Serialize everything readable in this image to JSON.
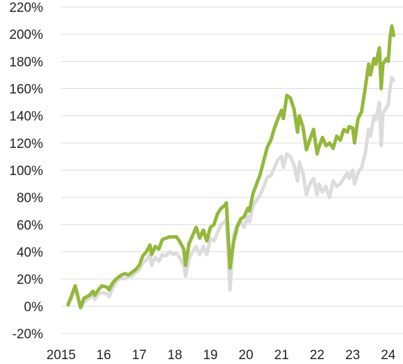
{
  "chart_data": {
    "type": "line",
    "title": "",
    "xlabel": "",
    "ylabel": "",
    "x_unit": "year",
    "xlim": [
      2014.6,
      2024.25
    ],
    "ylim": [
      -20,
      220
    ],
    "grid": "horizontal",
    "legend": "none",
    "y_ticks": [
      -20,
      0,
      20,
      40,
      60,
      80,
      100,
      120,
      140,
      160,
      180,
      200,
      220
    ],
    "y_tick_labels": [
      "-20%",
      "0%",
      "20%",
      "40%",
      "60%",
      "80%",
      "100%",
      "120%",
      "140%",
      "160%",
      "180%",
      "200%",
      "220%"
    ],
    "x_ticks": [
      2015,
      2016,
      2017,
      2018,
      2019,
      2020,
      2021,
      2022,
      2023,
      2024
    ],
    "x_tick_labels": [
      "2015",
      "16",
      "17",
      "18",
      "19",
      "20",
      "21",
      "22",
      "23",
      "24"
    ],
    "series": [
      {
        "color": "#dcdcdc",
        "points": [
          [
            2015.0,
            2
          ],
          [
            2015.1,
            6
          ],
          [
            2015.2,
            13
          ],
          [
            2015.25,
            9
          ],
          [
            2015.35,
            -1
          ],
          [
            2015.45,
            3
          ],
          [
            2015.6,
            6
          ],
          [
            2015.7,
            8
          ],
          [
            2015.75,
            5
          ],
          [
            2015.85,
            9
          ],
          [
            2015.95,
            10
          ],
          [
            2016.1,
            9
          ],
          [
            2016.15,
            7
          ],
          [
            2016.25,
            13
          ],
          [
            2016.35,
            18
          ],
          [
            2016.5,
            21
          ],
          [
            2016.6,
            20
          ],
          [
            2016.7,
            22
          ],
          [
            2016.8,
            22
          ],
          [
            2016.9,
            25
          ],
          [
            2017.0,
            27
          ],
          [
            2017.1,
            32
          ],
          [
            2017.2,
            34
          ],
          [
            2017.3,
            38
          ],
          [
            2017.35,
            30
          ],
          [
            2017.45,
            36
          ],
          [
            2017.55,
            33
          ],
          [
            2017.65,
            38
          ],
          [
            2017.75,
            37
          ],
          [
            2017.85,
            40
          ],
          [
            2017.95,
            38
          ],
          [
            2018.05,
            39
          ],
          [
            2018.15,
            35
          ],
          [
            2018.25,
            30
          ],
          [
            2018.3,
            22
          ],
          [
            2018.4,
            35
          ],
          [
            2018.5,
            40
          ],
          [
            2018.6,
            44
          ],
          [
            2018.7,
            38
          ],
          [
            2018.8,
            44
          ],
          [
            2018.9,
            38
          ],
          [
            2019.0,
            50
          ],
          [
            2019.1,
            48
          ],
          [
            2019.2,
            54
          ],
          [
            2019.3,
            60
          ],
          [
            2019.4,
            62
          ],
          [
            2019.45,
            64
          ],
          [
            2019.55,
            12
          ],
          [
            2019.65,
            52
          ],
          [
            2019.75,
            60
          ],
          [
            2019.85,
            62
          ],
          [
            2019.95,
            58
          ],
          [
            2020.05,
            66
          ],
          [
            2020.1,
            62
          ],
          [
            2020.2,
            74
          ],
          [
            2020.3,
            78
          ],
          [
            2020.4,
            82
          ],
          [
            2020.5,
            88
          ],
          [
            2020.6,
            95
          ],
          [
            2020.7,
            96
          ],
          [
            2020.8,
            102
          ],
          [
            2020.9,
            108
          ],
          [
            2021.0,
            110
          ],
          [
            2021.05,
            102
          ],
          [
            2021.15,
            112
          ],
          [
            2021.25,
            110
          ],
          [
            2021.35,
            104
          ],
          [
            2021.45,
            92
          ],
          [
            2021.5,
            106
          ],
          [
            2021.6,
            98
          ],
          [
            2021.7,
            82
          ],
          [
            2021.8,
            90
          ],
          [
            2021.9,
            94
          ],
          [
            2022.0,
            82
          ],
          [
            2022.05,
            90
          ],
          [
            2022.15,
            84
          ],
          [
            2022.25,
            88
          ],
          [
            2022.35,
            80
          ],
          [
            2022.45,
            92
          ],
          [
            2022.55,
            88
          ],
          [
            2022.65,
            90
          ],
          [
            2022.75,
            94
          ],
          [
            2022.85,
            98
          ],
          [
            2022.9,
            94
          ],
          [
            2023.0,
            100
          ],
          [
            2023.05,
            90
          ],
          [
            2023.15,
            98
          ],
          [
            2023.25,
            102
          ],
          [
            2023.35,
            112
          ],
          [
            2023.45,
            130
          ],
          [
            2023.5,
            125
          ],
          [
            2023.6,
            140
          ],
          [
            2023.65,
            137
          ],
          [
            2023.75,
            150
          ],
          [
            2023.8,
            118
          ],
          [
            2023.85,
            142
          ],
          [
            2023.95,
            146
          ],
          [
            2024.0,
            148
          ],
          [
            2024.05,
            160
          ],
          [
            2024.1,
            168
          ],
          [
            2024.15,
            166
          ]
        ]
      },
      {
        "color": "#94b83a",
        "points": [
          [
            2015.0,
            1
          ],
          [
            2015.1,
            8
          ],
          [
            2015.2,
            15
          ],
          [
            2015.25,
            10
          ],
          [
            2015.35,
            -1
          ],
          [
            2015.45,
            6
          ],
          [
            2015.6,
            8
          ],
          [
            2015.7,
            11
          ],
          [
            2015.75,
            8
          ],
          [
            2015.85,
            12
          ],
          [
            2015.95,
            15
          ],
          [
            2016.1,
            14
          ],
          [
            2016.15,
            12
          ],
          [
            2016.25,
            17
          ],
          [
            2016.35,
            20
          ],
          [
            2016.5,
            23
          ],
          [
            2016.6,
            24
          ],
          [
            2016.7,
            23
          ],
          [
            2016.8,
            25
          ],
          [
            2016.9,
            27
          ],
          [
            2017.0,
            30
          ],
          [
            2017.1,
            37
          ],
          [
            2017.2,
            40
          ],
          [
            2017.3,
            45
          ],
          [
            2017.35,
            38
          ],
          [
            2017.45,
            44
          ],
          [
            2017.55,
            42
          ],
          [
            2017.65,
            49
          ],
          [
            2017.75,
            50
          ],
          [
            2017.85,
            51
          ],
          [
            2017.95,
            51
          ],
          [
            2018.05,
            51
          ],
          [
            2018.15,
            47
          ],
          [
            2018.25,
            42
          ],
          [
            2018.3,
            30
          ],
          [
            2018.4,
            46
          ],
          [
            2018.5,
            52
          ],
          [
            2018.6,
            58
          ],
          [
            2018.7,
            50
          ],
          [
            2018.8,
            56
          ],
          [
            2018.9,
            48
          ],
          [
            2019.0,
            58
          ],
          [
            2019.1,
            60
          ],
          [
            2019.2,
            68
          ],
          [
            2019.3,
            72
          ],
          [
            2019.4,
            74
          ],
          [
            2019.45,
            76
          ],
          [
            2019.55,
            28
          ],
          [
            2019.65,
            47
          ],
          [
            2019.75,
            58
          ],
          [
            2019.85,
            64
          ],
          [
            2019.95,
            66
          ],
          [
            2020.05,
            72
          ],
          [
            2020.1,
            70
          ],
          [
            2020.2,
            83
          ],
          [
            2020.3,
            90
          ],
          [
            2020.4,
            97
          ],
          [
            2020.5,
            107
          ],
          [
            2020.6,
            117
          ],
          [
            2020.7,
            122
          ],
          [
            2020.8,
            131
          ],
          [
            2020.9,
            138
          ],
          [
            2021.0,
            144
          ],
          [
            2021.05,
            138
          ],
          [
            2021.15,
            155
          ],
          [
            2021.25,
            153
          ],
          [
            2021.35,
            145
          ],
          [
            2021.45,
            128
          ],
          [
            2021.5,
            140
          ],
          [
            2021.6,
            132
          ],
          [
            2021.7,
            115
          ],
          [
            2021.8,
            123
          ],
          [
            2021.9,
            130
          ],
          [
            2022.0,
            112
          ],
          [
            2022.05,
            117
          ],
          [
            2022.15,
            124
          ],
          [
            2022.25,
            118
          ],
          [
            2022.35,
            120
          ],
          [
            2022.45,
            116
          ],
          [
            2022.55,
            125
          ],
          [
            2022.65,
            122
          ],
          [
            2022.75,
            130
          ],
          [
            2022.85,
            128
          ],
          [
            2022.9,
            132
          ],
          [
            2023.0,
            131
          ],
          [
            2023.05,
            120
          ],
          [
            2023.15,
            138
          ],
          [
            2023.25,
            143
          ],
          [
            2023.35,
            160
          ],
          [
            2023.45,
            178
          ],
          [
            2023.5,
            170
          ],
          [
            2023.6,
            182
          ],
          [
            2023.65,
            178
          ],
          [
            2023.75,
            190
          ],
          [
            2023.8,
            160
          ],
          [
            2023.85,
            178
          ],
          [
            2023.95,
            182
          ],
          [
            2024.0,
            180
          ],
          [
            2024.05,
            198
          ],
          [
            2024.1,
            206
          ],
          [
            2024.15,
            199
          ]
        ]
      }
    ]
  }
}
